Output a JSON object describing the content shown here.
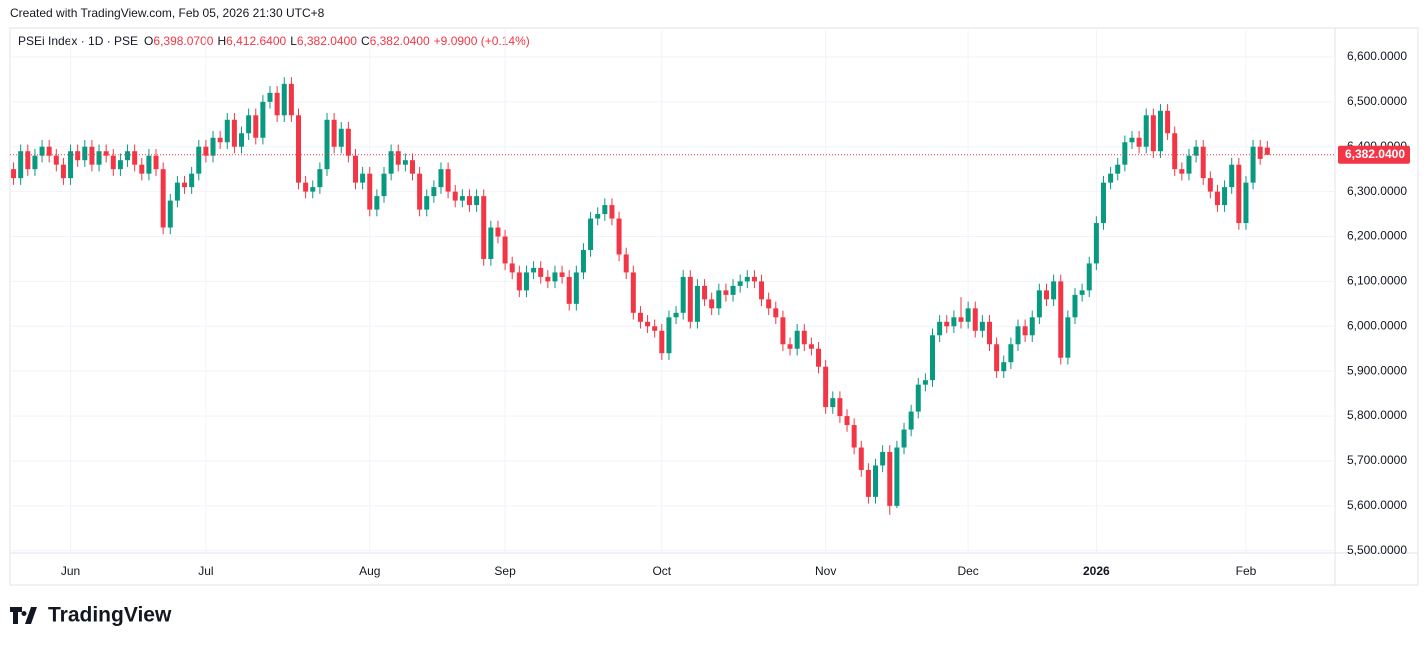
{
  "header": "Created with TradingView.com, Feb 05, 2026 21:30 UTC+8",
  "brand": "TradingView",
  "chart_data": {
    "type": "candlestick",
    "legend": {
      "symbol": "PSEi Index · 1D · PSE",
      "o_key": "O",
      "o": "6,398.0700",
      "h_key": "H",
      "h": "6,412.6400",
      "l_key": "L",
      "l": "6,382.0400",
      "c_key": "C",
      "c": "6,382.0400",
      "change": "+9.0900 (+0.14%)"
    },
    "last_label": "6,382.0400",
    "up_color": "#089981",
    "down_color": "#f23645",
    "grid": true,
    "ylim": [
      5495,
      6660
    ],
    "yticks": [
      {
        "value": 5500,
        "label": "5,500.0000"
      },
      {
        "value": 5600,
        "label": "5,600.0000"
      },
      {
        "value": 5700,
        "label": "5,700.0000"
      },
      {
        "value": 5800,
        "label": "5,800.0000"
      },
      {
        "value": 5900,
        "label": "5,900.0000"
      },
      {
        "value": 6000,
        "label": "6,000.0000"
      },
      {
        "value": 6100,
        "label": "6,100.0000"
      },
      {
        "value": 6200,
        "label": "6,200.0000"
      },
      {
        "value": 6300,
        "label": "6,300.0000"
      },
      {
        "value": 6400,
        "label": "6,400.0000"
      },
      {
        "value": 6500,
        "label": "6,500.0000"
      },
      {
        "value": 6600,
        "label": "6,600.0000"
      }
    ],
    "xlim": [
      -0.5,
      185.5
    ],
    "xticks": [
      {
        "value": 8,
        "label": "Jun"
      },
      {
        "value": 27,
        "label": "Jul"
      },
      {
        "value": 50,
        "label": "Aug"
      },
      {
        "value": 69,
        "label": "Sep"
      },
      {
        "value": 91,
        "label": "Oct"
      },
      {
        "value": 114,
        "label": "Nov"
      },
      {
        "value": 134,
        "label": "Dec"
      },
      {
        "value": 152,
        "label": "2026"
      },
      {
        "value": 173,
        "label": "Feb"
      }
    ],
    "ohlc": [
      [
        6350,
        6365,
        6315,
        6330
      ],
      [
        6330,
        6405,
        6315,
        6390
      ],
      [
        6390,
        6405,
        6335,
        6350
      ],
      [
        6350,
        6395,
        6335,
        6380
      ],
      [
        6380,
        6415,
        6365,
        6400
      ],
      [
        6400,
        6415,
        6365,
        6380
      ],
      [
        6380,
        6395,
        6345,
        6360
      ],
      [
        6360,
        6375,
        6315,
        6330
      ],
      [
        6330,
        6405,
        6315,
        6390
      ],
      [
        6390,
        6405,
        6355,
        6370
      ],
      [
        6370,
        6415,
        6355,
        6400
      ],
      [
        6400,
        6415,
        6345,
        6360
      ],
      [
        6360,
        6405,
        6345,
        6390
      ],
      [
        6390,
        6405,
        6365,
        6380
      ],
      [
        6380,
        6395,
        6335,
        6350
      ],
      [
        6350,
        6385,
        6335,
        6370
      ],
      [
        6370,
        6405,
        6355,
        6390
      ],
      [
        6390,
        6405,
        6345,
        6360
      ],
      [
        6360,
        6375,
        6325,
        6340
      ],
      [
        6340,
        6395,
        6325,
        6380
      ],
      [
        6380,
        6395,
        6335,
        6350
      ],
      [
        6350,
        6365,
        6205,
        6220
      ],
      [
        6220,
        6295,
        6205,
        6280
      ],
      [
        6280,
        6335,
        6265,
        6320
      ],
      [
        6320,
        6335,
        6295,
        6310
      ],
      [
        6310,
        6355,
        6295,
        6340
      ],
      [
        6340,
        6415,
        6325,
        6400
      ],
      [
        6400,
        6415,
        6365,
        6380
      ],
      [
        6380,
        6435,
        6365,
        6420
      ],
      [
        6420,
        6435,
        6395,
        6410
      ],
      [
        6410,
        6475,
        6395,
        6460
      ],
      [
        6460,
        6475,
        6385,
        6400
      ],
      [
        6400,
        6445,
        6385,
        6430
      ],
      [
        6430,
        6485,
        6415,
        6470
      ],
      [
        6470,
        6485,
        6405,
        6420
      ],
      [
        6420,
        6515,
        6405,
        6500
      ],
      [
        6500,
        6535,
        6485,
        6520
      ],
      [
        6520,
        6535,
        6455,
        6470
      ],
      [
        6470,
        6555,
        6455,
        6540
      ],
      [
        6540,
        6555,
        6455,
        6470
      ],
      [
        6470,
        6485,
        6305,
        6320
      ],
      [
        6320,
        6335,
        6285,
        6300
      ],
      [
        6300,
        6325,
        6285,
        6310
      ],
      [
        6310,
        6365,
        6295,
        6350
      ],
      [
        6350,
        6475,
        6335,
        6460
      ],
      [
        6460,
        6475,
        6385,
        6400
      ],
      [
        6400,
        6455,
        6385,
        6440
      ],
      [
        6440,
        6455,
        6365,
        6380
      ],
      [
        6380,
        6395,
        6305,
        6320
      ],
      [
        6320,
        6355,
        6305,
        6340
      ],
      [
        6340,
        6355,
        6245,
        6260
      ],
      [
        6260,
        6305,
        6245,
        6290
      ],
      [
        6290,
        6355,
        6275,
        6340
      ],
      [
        6340,
        6405,
        6325,
        6390
      ],
      [
        6390,
        6405,
        6345,
        6360
      ],
      [
        6360,
        6385,
        6345,
        6370
      ],
      [
        6370,
        6385,
        6325,
        6340
      ],
      [
        6340,
        6355,
        6245,
        6260
      ],
      [
        6260,
        6305,
        6245,
        6290
      ],
      [
        6290,
        6325,
        6275,
        6310
      ],
      [
        6310,
        6365,
        6295,
        6350
      ],
      [
        6350,
        6365,
        6285,
        6300
      ],
      [
        6300,
        6315,
        6265,
        6280
      ],
      [
        6280,
        6305,
        6265,
        6290
      ],
      [
        6290,
        6305,
        6255,
        6270
      ],
      [
        6270,
        6305,
        6255,
        6290
      ],
      [
        6290,
        6305,
        6135,
        6150
      ],
      [
        6150,
        6235,
        6135,
        6220
      ],
      [
        6220,
        6235,
        6185,
        6200
      ],
      [
        6200,
        6215,
        6125,
        6140
      ],
      [
        6140,
        6155,
        6105,
        6120
      ],
      [
        6120,
        6135,
        6065,
        6080
      ],
      [
        6080,
        6135,
        6065,
        6120
      ],
      [
        6120,
        6145,
        6105,
        6130
      ],
      [
        6130,
        6145,
        6095,
        6110
      ],
      [
        6110,
        6125,
        6085,
        6100
      ],
      [
        6100,
        6135,
        6085,
        6120
      ],
      [
        6120,
        6135,
        6095,
        6110
      ],
      [
        6110,
        6125,
        6035,
        6050
      ],
      [
        6050,
        6135,
        6035,
        6120
      ],
      [
        6120,
        6185,
        6105,
        6170
      ],
      [
        6170,
        6255,
        6155,
        6240
      ],
      [
        6240,
        6265,
        6225,
        6250
      ],
      [
        6250,
        6285,
        6235,
        6270
      ],
      [
        6270,
        6285,
        6225,
        6240
      ],
      [
        6240,
        6255,
        6145,
        6160
      ],
      [
        6160,
        6175,
        6105,
        6120
      ],
      [
        6120,
        6135,
        6015,
        6030
      ],
      [
        6030,
        6045,
        5995,
        6010
      ],
      [
        6010,
        6025,
        5985,
        6000
      ],
      [
        6000,
        6015,
        5975,
        5990
      ],
      [
        5990,
        6005,
        5925,
        5940
      ],
      [
        5940,
        6035,
        5925,
        6020
      ],
      [
        6020,
        6045,
        6005,
        6030
      ],
      [
        6030,
        6125,
        6015,
        6110
      ],
      [
        6110,
        6125,
        5995,
        6010
      ],
      [
        6010,
        6105,
        5995,
        6090
      ],
      [
        6090,
        6105,
        6045,
        6060
      ],
      [
        6060,
        6075,
        6025,
        6040
      ],
      [
        6040,
        6095,
        6025,
        6080
      ],
      [
        6080,
        6095,
        6055,
        6070
      ],
      [
        6070,
        6105,
        6055,
        6090
      ],
      [
        6090,
        6115,
        6075,
        6100
      ],
      [
        6100,
        6125,
        6085,
        6110
      ],
      [
        6110,
        6125,
        6085,
        6100
      ],
      [
        6100,
        6115,
        6045,
        6060
      ],
      [
        6060,
        6075,
        6025,
        6040
      ],
      [
        6040,
        6055,
        6005,
        6020
      ],
      [
        6020,
        6035,
        5945,
        5960
      ],
      [
        5960,
        5975,
        5935,
        5950
      ],
      [
        5950,
        6005,
        5935,
        5990
      ],
      [
        5990,
        6005,
        5945,
        5960
      ],
      [
        5960,
        5975,
        5935,
        5950
      ],
      [
        5950,
        5965,
        5895,
        5910
      ],
      [
        5910,
        5925,
        5805,
        5820
      ],
      [
        5820,
        5855,
        5805,
        5840
      ],
      [
        5840,
        5855,
        5785,
        5800
      ],
      [
        5800,
        5815,
        5765,
        5780
      ],
      [
        5780,
        5795,
        5715,
        5730
      ],
      [
        5730,
        5745,
        5665,
        5680
      ],
      [
        5680,
        5695,
        5605,
        5620
      ],
      [
        5620,
        5705,
        5605,
        5690
      ],
      [
        5690,
        5735,
        5675,
        5720
      ],
      [
        5720,
        5735,
        5580,
        5600
      ],
      [
        5600,
        5745,
        5595,
        5730
      ],
      [
        5730,
        5785,
        5715,
        5770
      ],
      [
        5770,
        5825,
        5755,
        5810
      ],
      [
        5810,
        5885,
        5795,
        5870
      ],
      [
        5870,
        5895,
        5855,
        5880
      ],
      [
        5880,
        5995,
        5865,
        5980
      ],
      [
        5980,
        6025,
        5965,
        6010
      ],
      [
        6010,
        6025,
        5985,
        6000
      ],
      [
        6000,
        6035,
        5985,
        6020
      ],
      [
        6020,
        6065,
        5995,
        6010
      ],
      [
        6010,
        6055,
        5995,
        6040
      ],
      [
        6040,
        6055,
        5975,
        5990
      ],
      [
        5990,
        6025,
        5975,
        6010
      ],
      [
        6010,
        6025,
        5945,
        5960
      ],
      [
        5960,
        5975,
        5885,
        5900
      ],
      [
        5900,
        5935,
        5885,
        5920
      ],
      [
        5920,
        5975,
        5905,
        5960
      ],
      [
        5960,
        6015,
        5945,
        6000
      ],
      [
        6000,
        6015,
        5965,
        5980
      ],
      [
        5980,
        6035,
        5965,
        6020
      ],
      [
        6020,
        6095,
        6005,
        6080
      ],
      [
        6080,
        6095,
        6045,
        6060
      ],
      [
        6060,
        6115,
        6045,
        6100
      ],
      [
        6100,
        6115,
        5915,
        5930
      ],
      [
        5930,
        6035,
        5915,
        6020
      ],
      [
        6020,
        6085,
        6005,
        6070
      ],
      [
        6070,
        6095,
        6055,
        6080
      ],
      [
        6080,
        6155,
        6065,
        6140
      ],
      [
        6140,
        6245,
        6125,
        6230
      ],
      [
        6230,
        6335,
        6215,
        6320
      ],
      [
        6320,
        6355,
        6305,
        6340
      ],
      [
        6340,
        6375,
        6325,
        6360
      ],
      [
        6360,
        6425,
        6345,
        6410
      ],
      [
        6410,
        6435,
        6395,
        6420
      ],
      [
        6420,
        6435,
        6385,
        6400
      ],
      [
        6400,
        6485,
        6385,
        6470
      ],
      [
        6470,
        6485,
        6375,
        6390
      ],
      [
        6390,
        6495,
        6375,
        6480
      ],
      [
        6480,
        6495,
        6415,
        6430
      ],
      [
        6430,
        6445,
        6335,
        6350
      ],
      [
        6350,
        6365,
        6325,
        6340
      ],
      [
        6340,
        6395,
        6325,
        6380
      ],
      [
        6380,
        6415,
        6365,
        6400
      ],
      [
        6400,
        6415,
        6315,
        6330
      ],
      [
        6330,
        6345,
        6285,
        6300
      ],
      [
        6300,
        6315,
        6255,
        6270
      ],
      [
        6270,
        6325,
        6255,
        6310
      ],
      [
        6310,
        6375,
        6295,
        6360
      ],
      [
        6360,
        6375,
        6215,
        6230
      ],
      [
        6230,
        6335,
        6215,
        6320
      ],
      [
        6320,
        6415,
        6305,
        6400
      ],
      [
        6400,
        6415,
        6360,
        6372.95
      ],
      [
        6398.07,
        6412.64,
        6382.04,
        6382.04
      ]
    ]
  }
}
